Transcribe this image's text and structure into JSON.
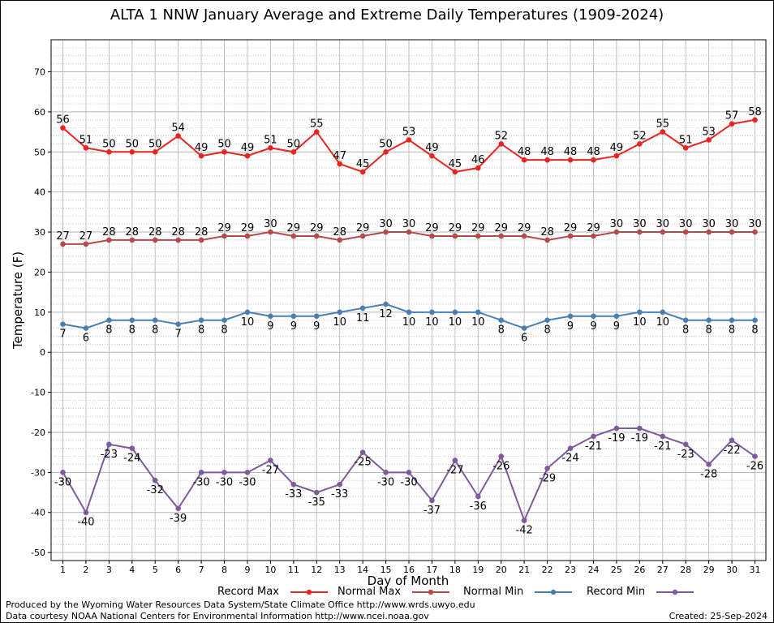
{
  "chart_data": {
    "type": "line",
    "title": "ALTA 1 NNW January Average and Extreme Daily Temperatures (1909-2024)",
    "xlabel": "Day of Month",
    "ylabel": "Temperature (F)",
    "ylim": [
      -52,
      78
    ],
    "yticks": [
      -50,
      -40,
      -30,
      -20,
      -10,
      0,
      10,
      20,
      30,
      40,
      50,
      60,
      70
    ],
    "x": [
      1,
      2,
      3,
      4,
      5,
      6,
      7,
      8,
      9,
      10,
      11,
      12,
      13,
      14,
      15,
      16,
      17,
      18,
      19,
      20,
      21,
      22,
      23,
      24,
      25,
      26,
      27,
      28,
      29,
      30,
      31
    ],
    "grid": true,
    "legend_position": "bottom",
    "series": [
      {
        "name": "Record Max",
        "color": "#e8251f",
        "label_pos": "above",
        "values": [
          56,
          51,
          50,
          50,
          50,
          54,
          49,
          50,
          49,
          51,
          50,
          55,
          47,
          45,
          50,
          53,
          49,
          45,
          46,
          52,
          48,
          48,
          48,
          48,
          49,
          52,
          55,
          51,
          53,
          57,
          58
        ]
      },
      {
        "name": "Normal Max",
        "color": "#b44a4a",
        "label_pos": "above",
        "values": [
          27,
          27,
          28,
          28,
          28,
          28,
          28,
          29,
          29,
          30,
          29,
          29,
          28,
          29,
          30,
          30,
          29,
          29,
          29,
          29,
          29,
          28,
          29,
          29,
          30,
          30,
          30,
          30,
          30,
          30,
          30
        ]
      },
      {
        "name": "Normal Min",
        "color": "#4a7fb4",
        "label_pos": "below",
        "values": [
          7,
          6,
          8,
          8,
          8,
          7,
          8,
          8,
          10,
          9,
          9,
          9,
          10,
          11,
          12,
          10,
          10,
          10,
          10,
          8,
          6,
          8,
          9,
          9,
          9,
          10,
          10,
          8,
          8,
          8,
          8
        ]
      },
      {
        "name": "Record Min",
        "color": "#7f5a9c",
        "label_pos": "below",
        "values": [
          -30,
          -40,
          -23,
          -24,
          -32,
          -39,
          -30,
          -30,
          -30,
          -27,
          -33,
          -35,
          -33,
          -25,
          -30,
          -30,
          -37,
          -27,
          -36,
          -26,
          -42,
          -29,
          -24,
          -21,
          -19,
          -19,
          -21,
          -23,
          -28,
          -22,
          -26
        ]
      }
    ]
  },
  "footer": {
    "produced_by": "Produced by the Wyoming Water Resources Data System/State Climate Office http://www.wrds.uwyo.edu",
    "courtesy": "Data courtesy NOAA National Centers for Environmental Information http://www.ncei.noaa.gov",
    "created": "Created:  25-Sep-2024"
  }
}
